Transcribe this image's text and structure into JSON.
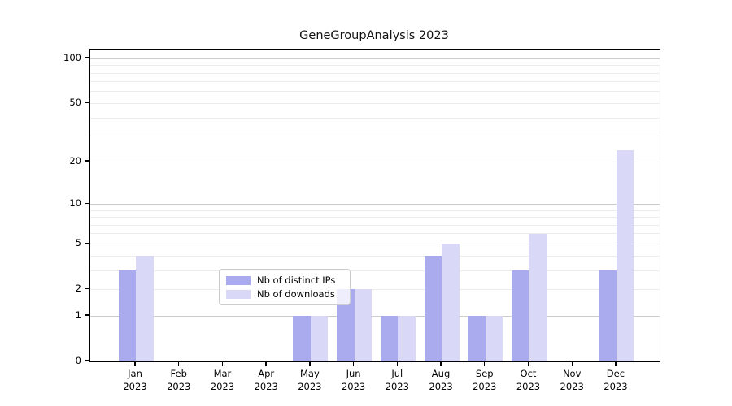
{
  "chart_data": {
    "type": "bar",
    "title": "GeneGroupAnalysis 2023",
    "categories": [
      "Jan 2023",
      "Feb 2023",
      "Mar 2023",
      "Apr 2023",
      "May 2023",
      "Jun 2023",
      "Jul 2023",
      "Aug 2023",
      "Sep 2023",
      "Oct 2023",
      "Nov 2023",
      "Dec 2023"
    ],
    "month_labels": [
      "Jan",
      "Feb",
      "Mar",
      "Apr",
      "May",
      "Jun",
      "Jul",
      "Aug",
      "Sep",
      "Oct",
      "Nov",
      "Dec"
    ],
    "year_label": "2023",
    "series": [
      {
        "name": "Nb of distinct IPs",
        "color": "#aaaaee",
        "values": [
          3,
          0,
          0,
          0,
          1,
          2,
          1,
          4,
          1,
          3,
          0,
          3
        ]
      },
      {
        "name": "Nb of downloads",
        "color": "#d9d9f7",
        "values": [
          4,
          0,
          0,
          0,
          1,
          2,
          1,
          5,
          1,
          6,
          0,
          24
        ]
      }
    ],
    "xlabel": "",
    "ylabel": "",
    "yscale": "log10(1+x)",
    "yticks": [
      0,
      1,
      2,
      5,
      10,
      20,
      50,
      100
    ],
    "major_gridlines": [
      1,
      10,
      100
    ],
    "minor_gridlines": [
      2,
      3,
      4,
      5,
      6,
      7,
      8,
      9,
      20,
      30,
      40,
      50,
      60,
      70,
      80,
      90
    ],
    "ylim": [
      0,
      116
    ],
    "grid": true,
    "legend_position": "inside lower-center"
  },
  "colors": {
    "major_grid": "#cccccc",
    "minor_grid": "#ececec",
    "spine": "#000000",
    "background": "#ffffff"
  }
}
